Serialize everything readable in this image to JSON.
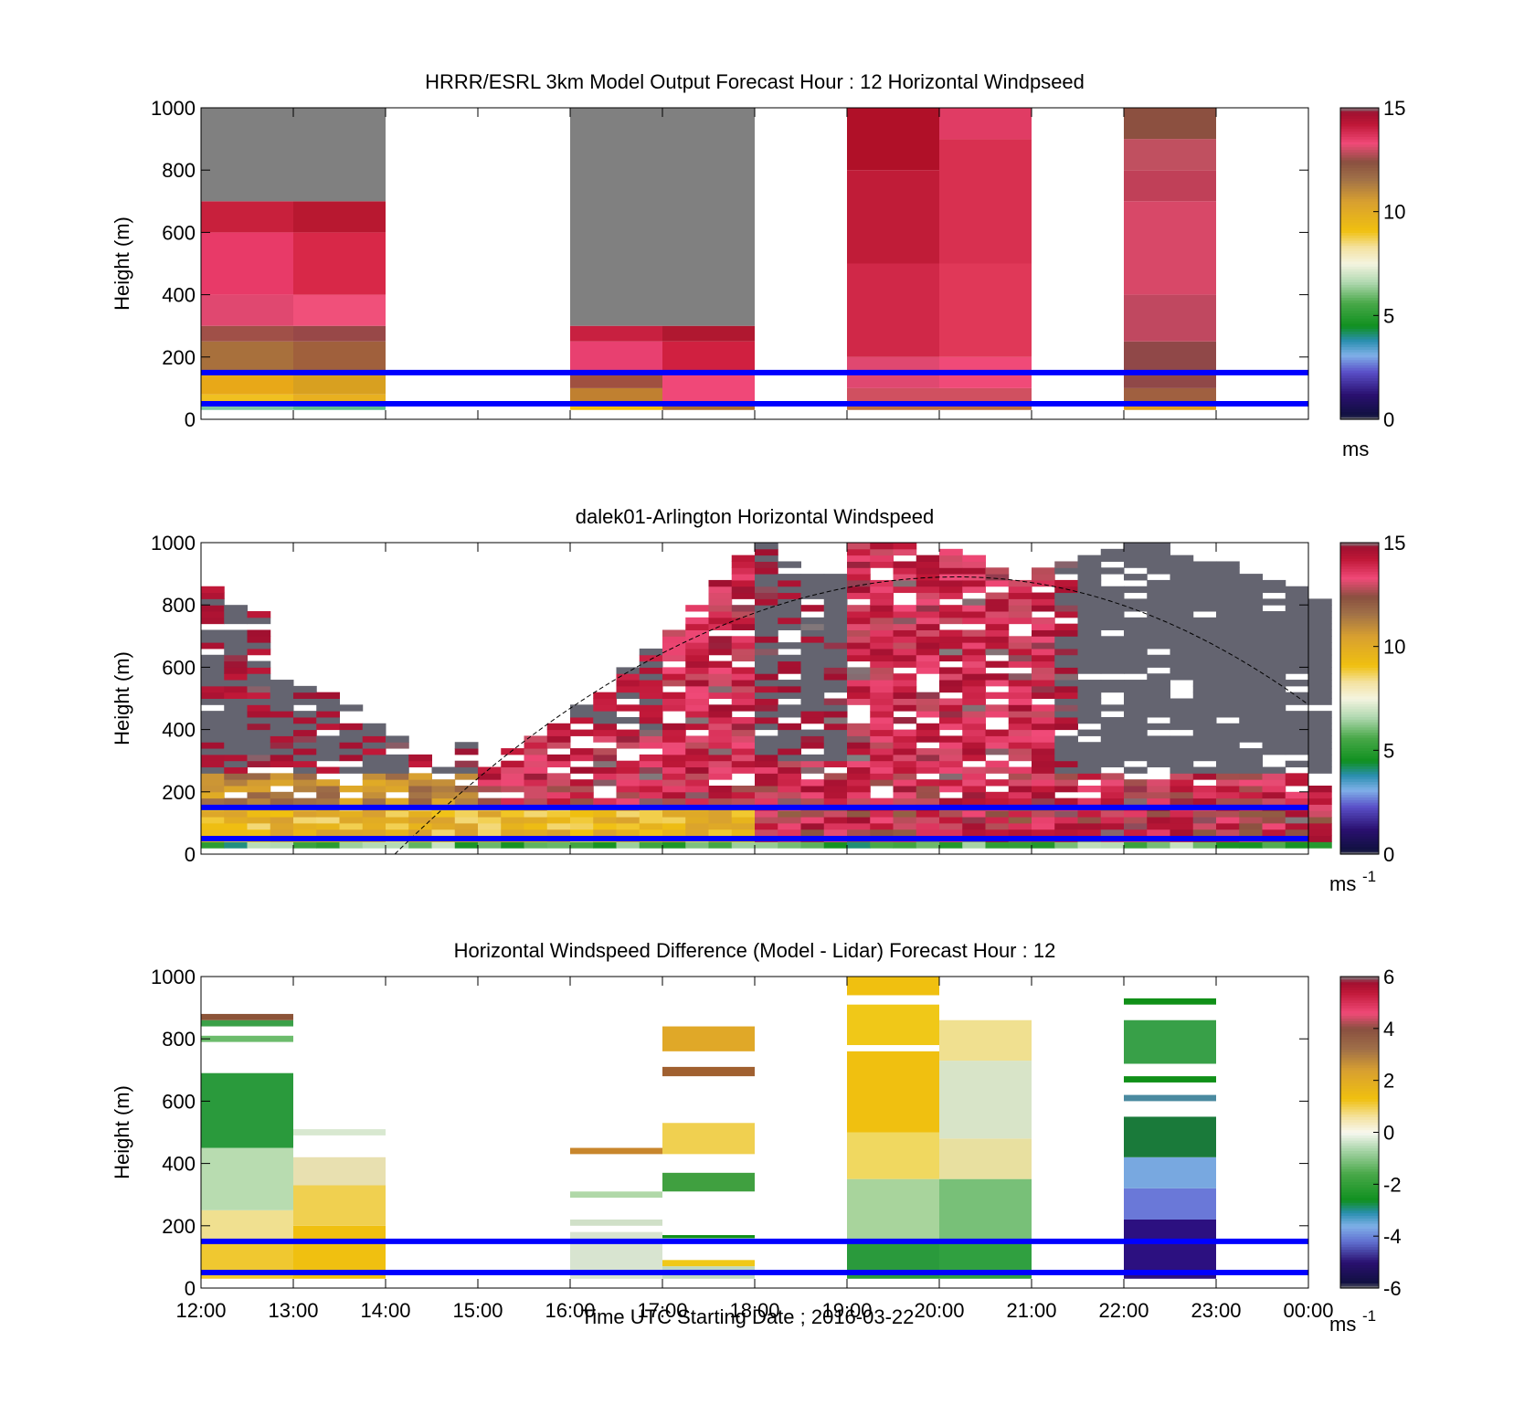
{
  "figure": {
    "xlabel": "Time UTC  Starting Date ; 2016-03-22",
    "x_ticks": [
      "12:00",
      "13:00",
      "14:00",
      "15:00",
      "16:00",
      "17:00",
      "18:00",
      "19:00",
      "20:00",
      "21:00",
      "22:00",
      "23:00",
      "00:00"
    ]
  },
  "chart_data": [
    {
      "type": "heatmap",
      "title": "HRRR/ESRL 3km Model Output   Forecast Hour : 12 Horizontal Windpseed",
      "ylabel": "Height (m)",
      "ylim": [
        0,
        1000
      ],
      "y_ticks": [
        "0",
        "200",
        "400",
        "600",
        "800",
        "1000"
      ],
      "x_range_hours_utc": [
        12,
        24
      ],
      "colorbar": {
        "range": [
          0,
          15
        ],
        "ticks": [
          "0",
          "5",
          "10",
          "15"
        ],
        "unit": "ms",
        "unit_sup": ""
      },
      "reference_lines_m": [
        50,
        150
      ],
      "columns": [
        {
          "t": 12.0,
          "cells": [
            [
              30,
              50,
              "#7bc8a4"
            ],
            [
              50,
              80,
              "#f0c020"
            ],
            [
              80,
              150,
              "#e8a818"
            ],
            [
              150,
              250,
              "#a8703c"
            ],
            [
              250,
              300,
              "#a05048"
            ],
            [
              300,
              400,
              "#e04870"
            ],
            [
              400,
              600,
              "#e83a68"
            ],
            [
              600,
              700,
              "#c8203c"
            ],
            [
              700,
              1000,
              "#808080"
            ]
          ]
        },
        {
          "t": 13.0,
          "cells": [
            [
              30,
              50,
              "#5cbf90"
            ],
            [
              50,
              80,
              "#e8b020"
            ],
            [
              80,
              150,
              "#d8a020"
            ],
            [
              150,
              250,
              "#a0603c"
            ],
            [
              250,
              300,
              "#984848"
            ],
            [
              300,
              400,
              "#f0507a"
            ],
            [
              400,
              600,
              "#d82848"
            ],
            [
              600,
              700,
              "#b81830"
            ],
            [
              700,
              1000,
              "#808080"
            ]
          ]
        },
        {
          "t": 16.0,
          "cells": [
            [
              30,
              50,
              "#f0c010"
            ],
            [
              50,
              100,
              "#c08030"
            ],
            [
              100,
              150,
              "#a05040"
            ],
            [
              150,
              250,
              "#e84070"
            ],
            [
              250,
              300,
              "#c82040"
            ],
            [
              300,
              1000,
              "#808080"
            ]
          ]
        },
        {
          "t": 17.0,
          "cells": [
            [
              30,
              50,
              "#b07030"
            ],
            [
              50,
              150,
              "#f04878"
            ],
            [
              150,
              250,
              "#d02040"
            ],
            [
              250,
              300,
              "#b01830"
            ],
            [
              300,
              1000,
              "#808080"
            ]
          ]
        },
        {
          "t": 19.0,
          "cells": [
            [
              30,
              50,
              "#c07040"
            ],
            [
              50,
              100,
              "#d05060"
            ],
            [
              100,
              200,
              "#e04870"
            ],
            [
              200,
              500,
              "#d02848"
            ],
            [
              500,
              800,
              "#c01c38"
            ],
            [
              800,
              1000,
              "#b01028"
            ]
          ]
        },
        {
          "t": 20.0,
          "cells": [
            [
              30,
              50,
              "#c07040"
            ],
            [
              50,
              100,
              "#d05060"
            ],
            [
              100,
              200,
              "#f04a78"
            ],
            [
              200,
              500,
              "#e03858"
            ],
            [
              500,
              900,
              "#d83050"
            ],
            [
              900,
              1000,
              "#e03c64"
            ]
          ]
        },
        {
          "t": 22.0,
          "cells": [
            [
              30,
              50,
              "#e0a020"
            ],
            [
              50,
              100,
              "#a06040"
            ],
            [
              100,
              250,
              "#904848"
            ],
            [
              250,
              400,
              "#c04860"
            ],
            [
              400,
              700,
              "#d84868"
            ],
            [
              700,
              800,
              "#c04058"
            ],
            [
              800,
              900,
              "#c05060"
            ],
            [
              900,
              1000,
              "#8c5040"
            ]
          ]
        }
      ]
    },
    {
      "type": "heatmap",
      "title": "dalek01-Arlington  Horizontal Windspeed",
      "ylabel": "Height (m)",
      "ylim": [
        0,
        1000
      ],
      "y_ticks": [
        "0",
        "200",
        "400",
        "600",
        "800",
        "1000"
      ],
      "x_range_hours_utc": [
        12,
        24
      ],
      "colorbar": {
        "range": [
          0,
          15
        ],
        "ticks": [
          "0",
          "5",
          "10",
          "15"
        ],
        "unit": "ms",
        "unit_sup": "-1"
      },
      "reference_lines_m": [
        50,
        150
      ],
      "top_envelope_m": [
        [
          12.0,
          850
        ],
        [
          12.25,
          800
        ],
        [
          12.5,
          780
        ],
        [
          12.75,
          560
        ],
        [
          13.0,
          540
        ],
        [
          13.25,
          520
        ],
        [
          13.5,
          470
        ],
        [
          13.75,
          420
        ],
        [
          14.0,
          380
        ],
        [
          14.25,
          320
        ],
        [
          14.5,
          280
        ],
        [
          14.75,
          350
        ],
        [
          15.0,
          300
        ],
        [
          15.25,
          340
        ],
        [
          15.5,
          400
        ],
        [
          15.75,
          420
        ],
        [
          16.0,
          480
        ],
        [
          16.25,
          520
        ],
        [
          16.5,
          600
        ],
        [
          16.75,
          650
        ],
        [
          17.0,
          720
        ],
        [
          17.25,
          800
        ],
        [
          17.5,
          880
        ],
        [
          17.75,
          960
        ],
        [
          18.0,
          1000
        ],
        [
          18.25,
          950
        ],
        [
          18.5,
          900
        ],
        [
          18.75,
          920
        ],
        [
          19.0,
          1000
        ],
        [
          19.25,
          1000
        ],
        [
          19.5,
          1000
        ],
        [
          19.75,
          990
        ],
        [
          20.0,
          980
        ],
        [
          20.25,
          960
        ],
        [
          20.5,
          940
        ],
        [
          20.75,
          900
        ],
        [
          21.0,
          920
        ],
        [
          21.25,
          940
        ],
        [
          21.5,
          960
        ],
        [
          21.75,
          980
        ],
        [
          22.0,
          1000
        ],
        [
          22.25,
          990
        ],
        [
          22.5,
          960
        ],
        [
          22.75,
          940
        ],
        [
          23.0,
          930
        ],
        [
          23.25,
          900
        ],
        [
          23.5,
          880
        ],
        [
          23.75,
          860
        ],
        [
          24.0,
          820
        ]
      ],
      "sun_curve": {
        "start_hour": 14.1,
        "peak_hour": 20.2,
        "peak_m": 890,
        "end_hour": 24.0,
        "end_m": 480
      },
      "annotations": []
    },
    {
      "type": "heatmap",
      "title": "Horizontal Windspeed Difference (Model - Lidar) Forecast Hour : 12",
      "ylabel": "Height (m)",
      "ylim": [
        0,
        1000
      ],
      "y_ticks": [
        "0",
        "200",
        "400",
        "600",
        "800",
        "1000"
      ],
      "x_range_hours_utc": [
        12,
        24
      ],
      "colorbar": {
        "range": [
          -6,
          6
        ],
        "ticks": [
          "-6",
          "-4",
          "-2",
          "0",
          "2",
          "4",
          "6"
        ],
        "unit": "ms",
        "unit_sup": "-1"
      },
      "reference_lines_m": [
        50,
        150
      ],
      "columns": [
        {
          "t": 12.0,
          "cells": [
            [
              30,
              150,
              "#f0c830"
            ],
            [
              150,
              250,
              "#f0e090"
            ],
            [
              250,
              450,
              "#b8dcb0"
            ],
            [
              450,
              690,
              "#2a9a3c"
            ],
            [
              790,
              810,
              "#6cbc6c"
            ],
            [
              840,
              860,
              "#3aa048"
            ],
            [
              860,
              880,
              "#8c5438"
            ]
          ]
        },
        {
          "t": 13.0,
          "cells": [
            [
              30,
              200,
              "#f0c010"
            ],
            [
              200,
              330,
              "#f0d050"
            ],
            [
              330,
              420,
              "#e8e0b0"
            ],
            [
              490,
              510,
              "#d8e8d0"
            ]
          ]
        },
        {
          "t": 16.0,
          "cells": [
            [
              30,
              180,
              "#d8e4d0"
            ],
            [
              200,
              220,
              "#d0e0c8"
            ],
            [
              290,
              310,
              "#b0d8a8"
            ],
            [
              430,
              450,
              "#c8862c"
            ]
          ]
        },
        {
          "t": 17.0,
          "cells": [
            [
              30,
              70,
              "#c0d8c0"
            ],
            [
              70,
              90,
              "#f0c818"
            ],
            [
              160,
              170,
              "#109018"
            ],
            [
              310,
              370,
              "#40a040"
            ],
            [
              430,
              530,
              "#f0d050"
            ],
            [
              680,
              710,
              "#a06030"
            ],
            [
              760,
              840,
              "#e0a828"
            ]
          ]
        },
        {
          "t": 19.0,
          "cells": [
            [
              30,
              150,
              "#2a9a3c"
            ],
            [
              150,
              350,
              "#a8d49c"
            ],
            [
              350,
              500,
              "#f0d860"
            ],
            [
              500,
              760,
              "#f0c010"
            ],
            [
              780,
              910,
              "#f0c818"
            ],
            [
              940,
              1000,
              "#f0c010"
            ]
          ]
        },
        {
          "t": 20.0,
          "cells": [
            [
              30,
              150,
              "#30a040"
            ],
            [
              150,
              350,
              "#78c078"
            ],
            [
              350,
              480,
              "#e8e0a0"
            ],
            [
              480,
              730,
              "#d8e4c8"
            ],
            [
              730,
              860,
              "#f0e090"
            ]
          ]
        },
        {
          "t": 22.0,
          "cells": [
            [
              30,
              220,
              "#2c1080"
            ],
            [
              220,
              320,
              "#6a78d8"
            ],
            [
              320,
              420,
              "#78a8e0"
            ],
            [
              420,
              550,
              "#1a7a3a"
            ],
            [
              600,
              620,
              "#4a8aa0"
            ],
            [
              660,
              680,
              "#109018"
            ],
            [
              720,
              860,
              "#38a048"
            ],
            [
              910,
              930,
              "#109018"
            ]
          ]
        }
      ]
    }
  ]
}
